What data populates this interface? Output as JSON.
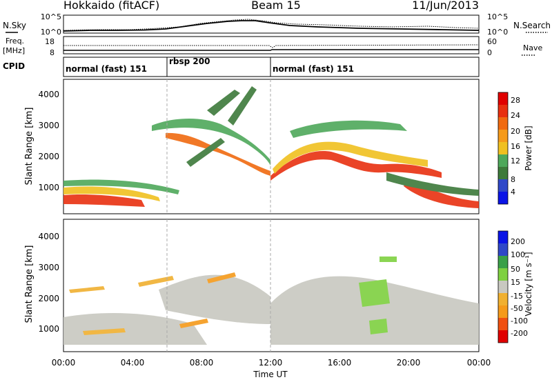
{
  "header": {
    "station": "Hokkaido (fitACF)",
    "beam": "Beam 15",
    "date": "11/Jun/2013"
  },
  "panels": {
    "nsky_label": "N.Sky",
    "nsearch_label": "N.Search",
    "nsky_ticks": [
      "10^5",
      "10^0"
    ],
    "nsearch_ticks": [
      "10^5",
      "10^0"
    ],
    "freq_label_1": "Freq.",
    "freq_label_2": "[MHz]",
    "freq_ticks": [
      "18",
      "8"
    ],
    "nave_label": "Nave",
    "nave_ticks": [
      "60",
      "0"
    ],
    "cpid_label": "CPID",
    "cpid_modes": [
      {
        "label": "normal (fast) 151",
        "start": "00:00",
        "end": "06:00"
      },
      {
        "label": "rbsp 200",
        "start": "06:00",
        "end": "12:00"
      },
      {
        "label": "normal (fast) 151",
        "start": "12:00",
        "end": "24:00"
      }
    ]
  },
  "colors": {
    "power": [
      "#0a14e6",
      "#2f48c8",
      "#3d7a3a",
      "#4ea85a",
      "#f0c020",
      "#f59a1a",
      "#f06a10",
      "#e83010",
      "#e00000"
    ],
    "velocity": [
      "#e00000",
      "#f05010",
      "#f59a1a",
      "#f0b030",
      "#c8c8c0",
      "#7ed040",
      "#3aa048",
      "#2f48c8",
      "#0a14e6"
    ]
  },
  "chart_data": [
    {
      "type": "heatmap",
      "title": "",
      "xlabel": "",
      "ylabel": "Slant Range [km]",
      "x_ticks": [
        "00:00",
        "04:00",
        "08:00",
        "12:00",
        "16:00",
        "20:00",
        "00:00"
      ],
      "y_ticks": [
        "1000",
        "2000",
        "3000",
        "4000"
      ],
      "ylim": [
        180,
        4500
      ],
      "colorbar": {
        "label": "Power [dB]",
        "ticks": [
          "4",
          "8",
          "12",
          "16",
          "20",
          "24",
          "28"
        ],
        "range": [
          0,
          30
        ]
      },
      "features": [
        {
          "time": [
            0.0,
            4.5
          ],
          "range": [
            300,
            800
          ],
          "value": 28
        },
        {
          "time": [
            4.5,
            11.8
          ],
          "range": [
            1200,
            3200
          ],
          "value": 20
        },
        {
          "time": [
            11.5,
            13.0
          ],
          "range": [
            1200,
            1800
          ],
          "value": 28
        },
        {
          "time": [
            13.0,
            20.5
          ],
          "range": [
            1400,
            2600
          ],
          "value": 26
        },
        {
          "time": [
            19.0,
            24.0
          ],
          "range": [
            300,
            900
          ],
          "value": 28
        }
      ]
    },
    {
      "type": "heatmap",
      "title": "",
      "xlabel": "Time UT",
      "ylabel": "Slant Range [km]",
      "x_ticks": [
        "00:00",
        "04:00",
        "08:00",
        "12:00",
        "16:00",
        "20:00",
        "00:00"
      ],
      "y_ticks": [
        "1000",
        "2000",
        "3000",
        "4000"
      ],
      "ylim": [
        180,
        4500
      ],
      "colorbar": {
        "label": "Velocity [m s⁻¹]",
        "ticks": [
          "-200",
          "-100",
          "-50",
          "-15",
          "15",
          "50",
          "100",
          "200"
        ],
        "range": [
          -250,
          250
        ]
      },
      "features": [
        {
          "time": [
            0.0,
            12.0
          ],
          "range": [
            300,
            1600
          ],
          "value": -15
        },
        {
          "time": [
            12.0,
            24.0
          ],
          "range": [
            400,
            2800
          ],
          "value": -15
        },
        {
          "time": [
            16.5,
            18.5
          ],
          "range": [
            1800,
            2400
          ],
          "value": 50
        },
        {
          "time": [
            17.5,
            18.5
          ],
          "range": [
            400,
            1200
          ],
          "value": 50
        }
      ]
    }
  ]
}
